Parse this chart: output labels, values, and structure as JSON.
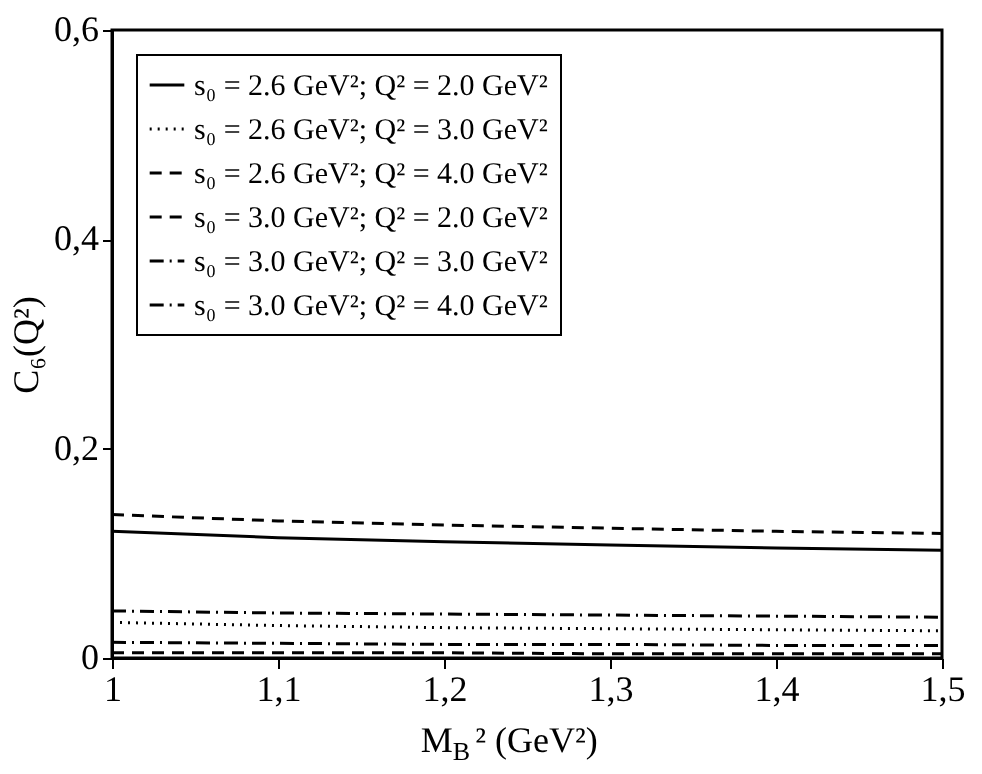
{
  "chart_data": {
    "type": "line",
    "xlabel": "M$_{B}$² (GeV²)",
    "ylabel": "C₆(Q²)",
    "x": [
      1,
      1.1,
      1.2,
      1.3,
      1.4,
      1.5
    ],
    "xlim": [
      1,
      1.5
    ],
    "ylim": [
      0,
      0.6
    ],
    "xticks": [
      1,
      {
        "value": 1.1,
        "label": "1,1"
      },
      {
        "value": 1.2,
        "label": "1,2"
      },
      {
        "value": 1.3,
        "label": "1,3"
      },
      {
        "value": 1.4,
        "label": "1,4"
      },
      {
        "value": 1.5,
        "label": "1,5"
      }
    ],
    "yticks": [
      0,
      {
        "value": 0.2,
        "label": "0,2"
      },
      {
        "value": 0.4,
        "label": "0,4"
      },
      {
        "value": 0.6,
        "label": "0,6"
      }
    ],
    "legend": "top left",
    "grid": false,
    "series": [
      {
        "name": "s₀ = 2.6 GeV²; Q² = 2.0 GeV²",
        "color": "#000000",
        "line_style": "solid",
        "values": [
          0.121,
          0.115,
          0.111,
          0.108,
          0.105,
          0.103
        ]
      },
      {
        "name": "s₀ = 2.6 GeV²; Q² = 3.0 GeV²",
        "color": "#000000",
        "line_style": "dotted",
        "values": [
          0.034,
          0.031,
          0.029,
          0.028,
          0.027,
          0.026
        ]
      },
      {
        "name": "s₀ = 2.6 GeV²; Q² = 4.0 GeV²",
        "color": "#000000",
        "line_style": "dashed",
        "values": [
          0.005,
          0.005,
          0.005,
          0.004,
          0.004,
          0.004
        ]
      },
      {
        "name": "s₀ = 3.0 GeV²; Q² = 2.0 GeV²",
        "color": "#000000",
        "line_style": "dashed",
        "values": [
          0.137,
          0.131,
          0.127,
          0.124,
          0.121,
          0.119
        ]
      },
      {
        "name": "s₀ = 3.0 GeV²; Q² = 3.0 GeV²",
        "color": "#000000",
        "line_style": "dashdot",
        "values": [
          0.045,
          0.043,
          0.042,
          0.041,
          0.04,
          0.039
        ]
      },
      {
        "name": "s₀ = 3.0 GeV²; Q² = 4.0 GeV²",
        "color": "#000000",
        "line_style": "dashdot",
        "values": [
          0.015,
          0.014,
          0.013,
          0.013,
          0.012,
          0.012
        ]
      }
    ]
  }
}
